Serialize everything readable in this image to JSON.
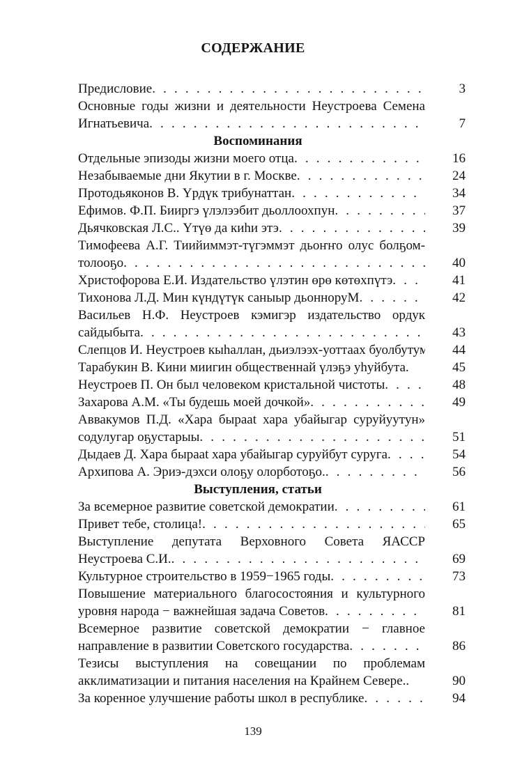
{
  "title": "СОДЕРЖАНИЕ",
  "folio": "139",
  "toc": [
    {
      "type": "entry",
      "lines": [
        "Предисловие"
      ],
      "page": "3",
      "dots": true
    },
    {
      "type": "entry",
      "lines": [
        "Основные годы жизни и деятельности Неустроева Семена",
        "Игнатьевича"
      ],
      "page": "7",
      "dots": true
    },
    {
      "type": "section",
      "label": "Воспоминания"
    },
    {
      "type": "entry",
      "lines": [
        "Отдельные эпизоды жизни моего отца"
      ],
      "page": "16",
      "dots": true
    },
    {
      "type": "entry",
      "lines": [
        "Незабываемые дни Якутии в г. Москве"
      ],
      "page": "24",
      "dots": true
    },
    {
      "type": "entry",
      "lines": [
        "Протодьяконов В. Үрдүк трибунаттан"
      ],
      "page": "34",
      "dots": true
    },
    {
      "type": "entry",
      "lines": [
        "Ефимов. Ф.П. Бииргэ үлэлээбит дьоллоохпун"
      ],
      "page": "37",
      "dots": true
    },
    {
      "type": "entry",
      "lines": [
        "Дьячковская Л.С.. Үтүө да киһи этэ"
      ],
      "page": "39",
      "dots": true
    },
    {
      "type": "entry",
      "lines": [
        "Тимофеева А.Г. Тиийиммэт-түгэммэт дьоҥҥо олус болҕом-",
        "толооҕо"
      ],
      "page": "40",
      "dots": true
    },
    {
      "type": "entry",
      "lines": [
        "Христофорова Е.И. Издательство үлэтин өрө көтөхпүтэ"
      ],
      "page": "41",
      "dots": true
    },
    {
      "type": "entry",
      "lines": [
        "Тихонова Л.Д. Мин күндүтүк саныыр дьонноруМ"
      ],
      "page": "42",
      "dots": true
    },
    {
      "type": "entry",
      "lines": [
        "Васильев Н.Ф. Неустроев кэмигэр издательство ордук",
        "сайдыбыта"
      ],
      "page": "43",
      "dots": true
    },
    {
      "type": "entry",
      "lines": [
        "Слепцов И. Неустроев кыһаллан, дьиэлээх-уоттаах буолбутум"
      ],
      "page": "44",
      "dots": false
    },
    {
      "type": "entry",
      "lines": [
        "Тарабукин В. Кини миигин общественнай үлэҕэ уһуйбута."
      ],
      "page": "45",
      "dots": false
    },
    {
      "type": "entry",
      "lines": [
        "Неустроев П. Он был человеком кристальной чистоты"
      ],
      "page": "48",
      "dots": true
    },
    {
      "type": "entry",
      "lines": [
        "Захарова А.М. «Ты будешь моей дочкой»"
      ],
      "page": "49",
      "dots": true
    },
    {
      "type": "entry",
      "lines": [
        "Аввакумов П.Д. «Хара бырааt хара убайыгар суруйуутун»",
        "содулугар оҕустарыы"
      ],
      "page": "51",
      "dots": true
    },
    {
      "type": "entry",
      "lines": [
        "Дыдаев Д. Хара бырааt хара убайыгар суруйбут суруга"
      ],
      "page": "54",
      "dots": true
    },
    {
      "type": "entry",
      "lines": [
        "Архипова А. Эриэ-дэхси олоҕу олорботоҕо."
      ],
      "page": "56",
      "dots": true
    },
    {
      "type": "section",
      "label": "Выступления, статьи"
    },
    {
      "type": "entry",
      "lines": [
        "За всемерное развитие советской демократии"
      ],
      "page": "61",
      "dots": true
    },
    {
      "type": "entry",
      "lines": [
        "Привет тебе, столица!"
      ],
      "page": "65",
      "dots": true
    },
    {
      "type": "entry",
      "lines": [
        "Выступление депутата Верховного Совета ЯАССР",
        "Неустроева С.И."
      ],
      "page": "69",
      "dots": true
    },
    {
      "type": "entry",
      "lines": [
        "Культурное строительство в 1959−1965 годы"
      ],
      "page": "73",
      "dots": true
    },
    {
      "type": "entry",
      "lines": [
        "Повышение материального благосостояния и культурного",
        "уровня народа − важнейшая задача Советов"
      ],
      "page": "81",
      "dots": true
    },
    {
      "type": "entry",
      "lines": [
        "Всемерное развитие советской демократии − главное",
        "направление в развитии Советского государства"
      ],
      "page": "86",
      "dots": true
    },
    {
      "type": "entry",
      "lines": [
        "Тезисы выступления на совещании по проблемам",
        "акклиматизации и питания населения на Крайнем Севере.."
      ],
      "page": "90",
      "dots": false
    },
    {
      "type": "entry",
      "lines": [
        "За коренное улучшение работы школ в республике"
      ],
      "page": "94",
      "dots": true
    }
  ]
}
